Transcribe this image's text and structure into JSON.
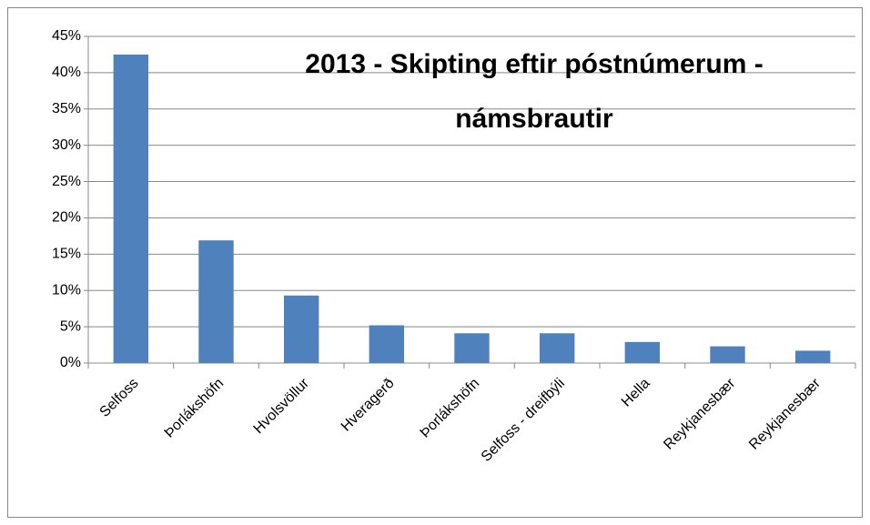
{
  "chart_data": {
    "type": "bar",
    "title": [
      "2013 - Skipting eftir póstnúmerum -",
      "námsbrautir"
    ],
    "categories": [
      "Selfoss",
      "Þorlákshöfn",
      "Hvolsvöllur",
      "Hveragerð",
      "Þorlákshöfn",
      "Selfoss - dreifbýli",
      "Hella",
      "Reykjanesbær",
      "Reykjanesbær"
    ],
    "values": [
      42.5,
      16.9,
      9.3,
      5.2,
      4.1,
      4.1,
      2.9,
      2.3,
      1.7
    ],
    "color": "#4f81bd",
    "ylim": [
      0,
      45
    ],
    "yticks": [
      {
        "value": 0,
        "label": "0%"
      },
      {
        "value": 5,
        "label": "5%"
      },
      {
        "value": 10,
        "label": "10%"
      },
      {
        "value": 15,
        "label": "15%"
      },
      {
        "value": 20,
        "label": "20%"
      },
      {
        "value": 25,
        "label": "25%"
      },
      {
        "value": 30,
        "label": "30%"
      },
      {
        "value": 35,
        "label": "35%"
      },
      {
        "value": 40,
        "label": "40%"
      },
      {
        "value": 45,
        "label": "45%"
      }
    ],
    "grid": true
  }
}
